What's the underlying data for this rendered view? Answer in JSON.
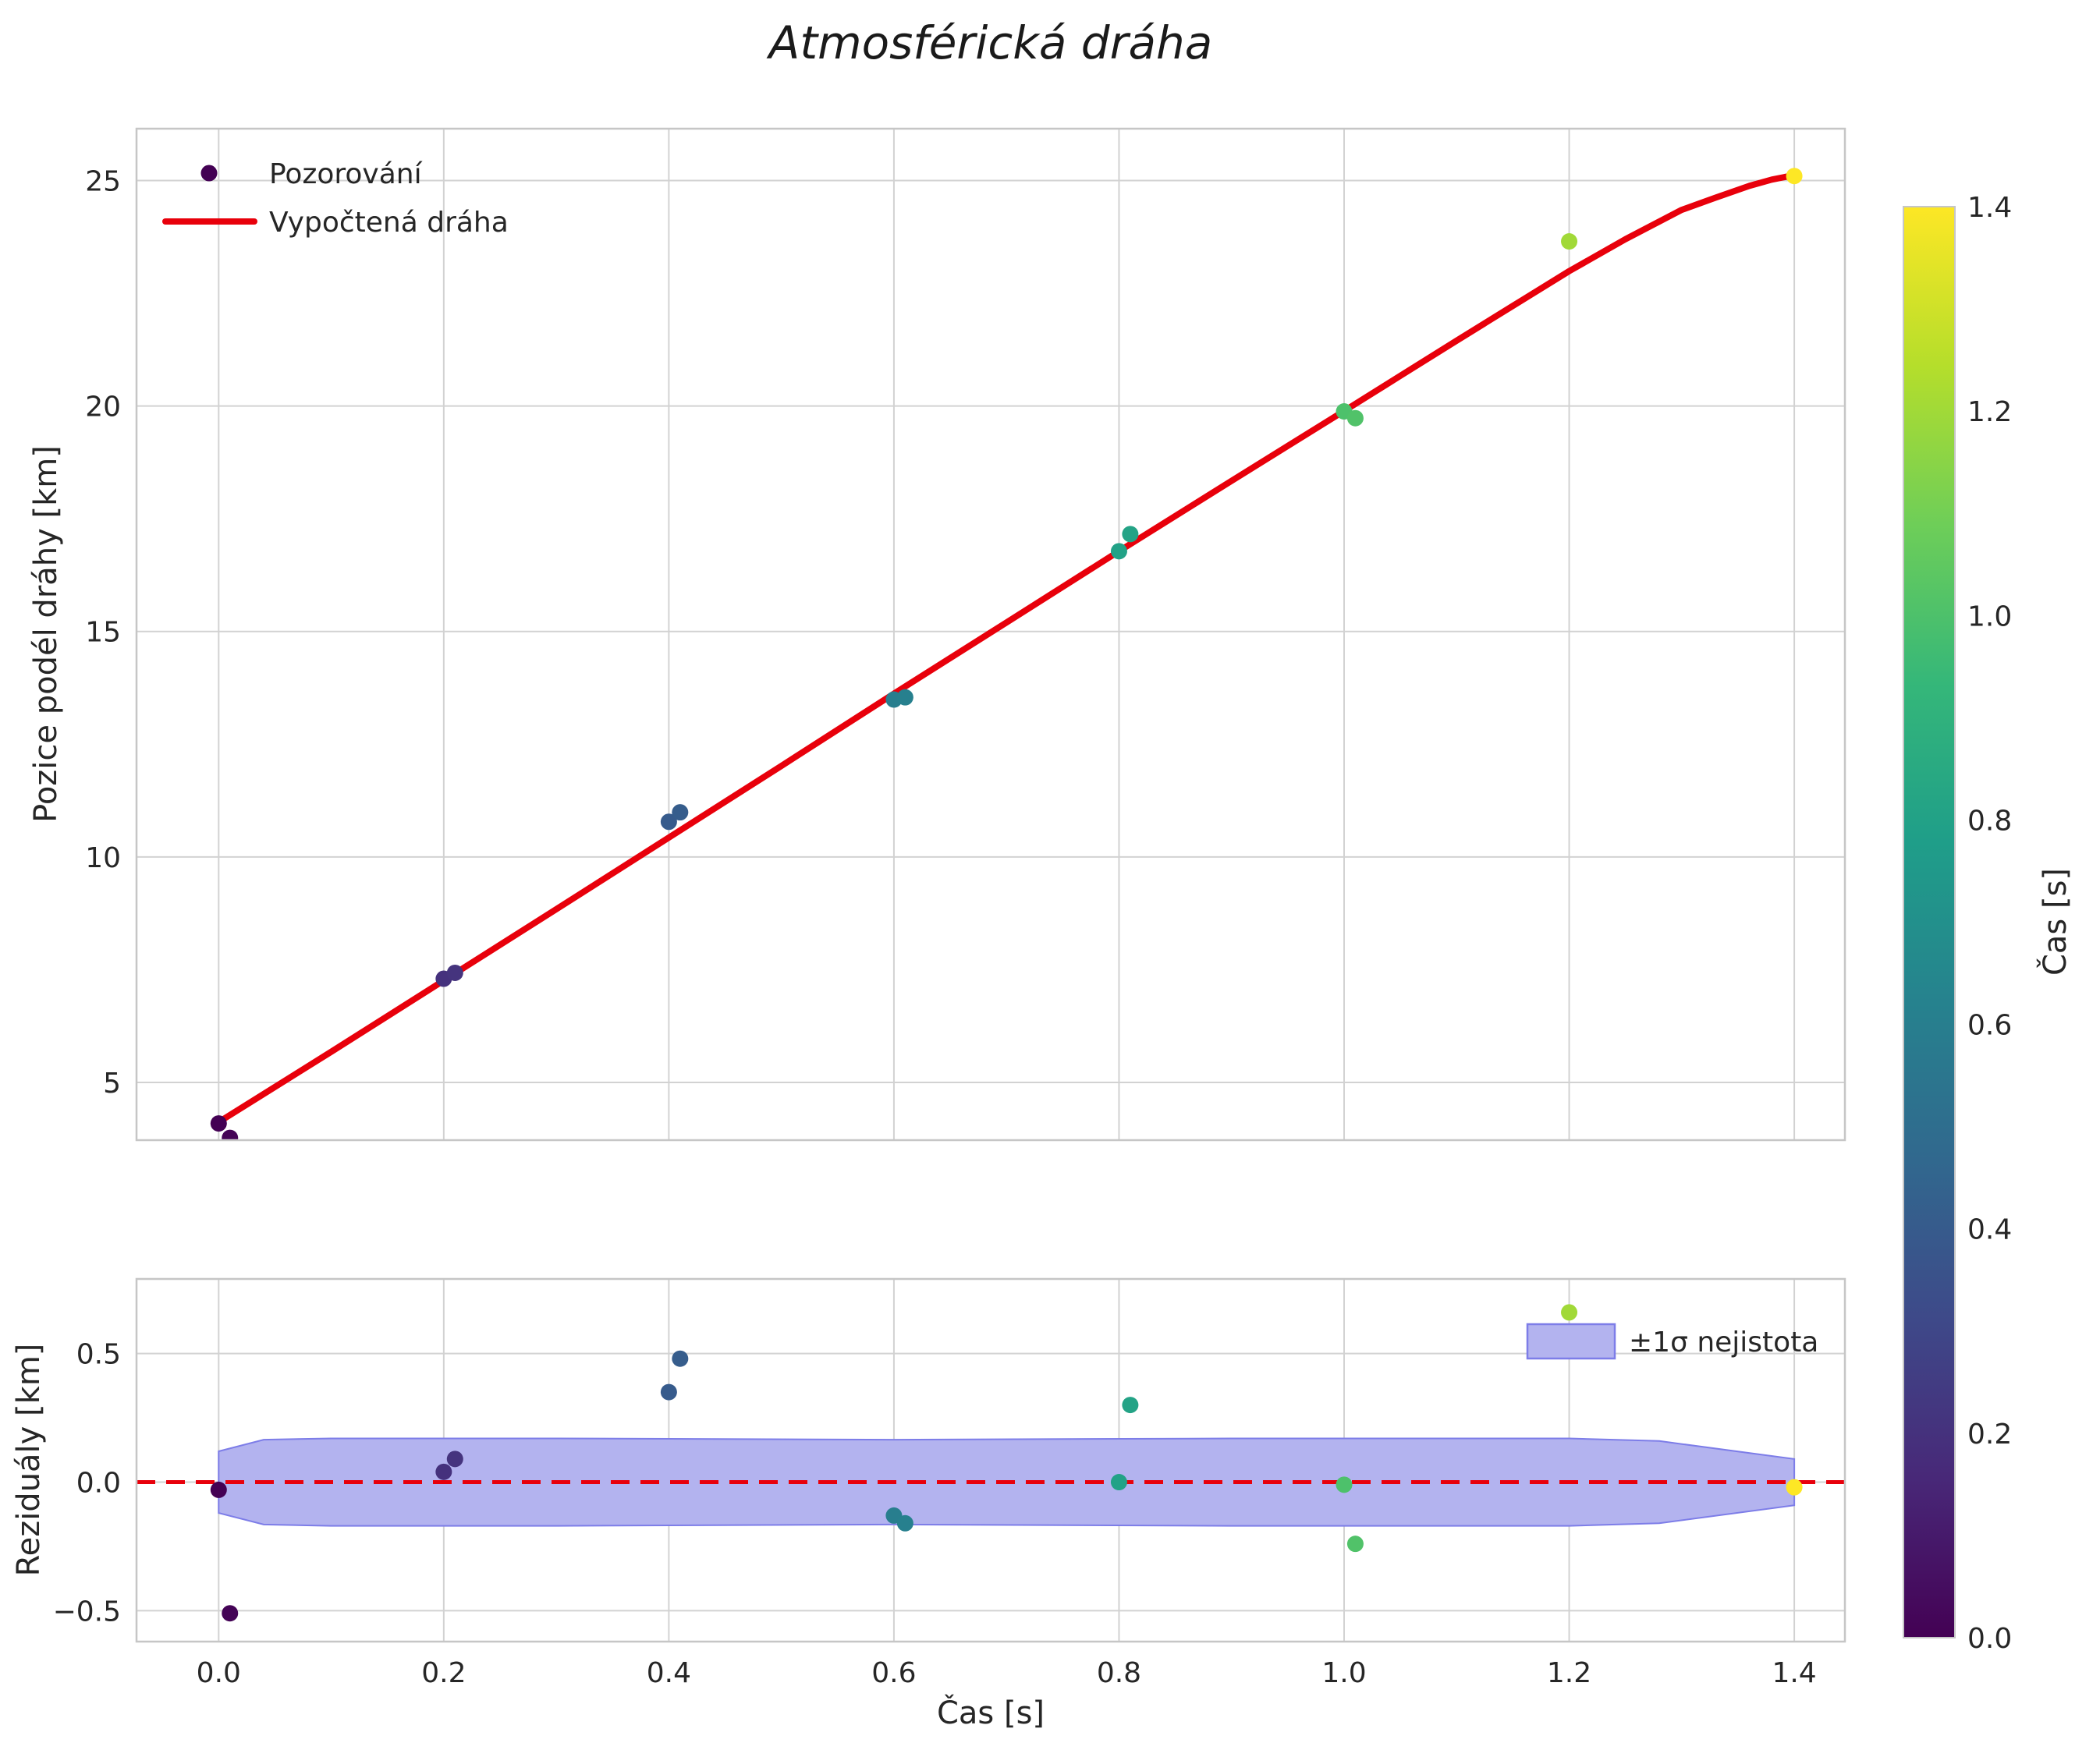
{
  "title": "Atmosférická dráha",
  "colors": {
    "curve": "#e8000b",
    "zero_line": "#e8000b",
    "band_fill": "#b3b3ef",
    "band_edge": "#7d7de8",
    "legend_marker": "#440154",
    "grid": "#d2d2d2",
    "spine": "#c6c6c6",
    "text": "#262626",
    "viridis": [
      "#440154",
      "#482878",
      "#3e4989",
      "#31688e",
      "#26828e",
      "#1f9e89",
      "#35b779",
      "#6ece58",
      "#b5de2b",
      "#fde725"
    ]
  },
  "chart_data": [
    {
      "type": "scatter",
      "title": "Atmosférická dráha",
      "ylabel": "Pozice podél dráhy [km]",
      "xlim": [
        -0.073,
        1.445
      ],
      "ylim": [
        3.72,
        26.15
      ],
      "yticks": [
        5,
        10,
        15,
        20,
        25
      ],
      "ytick_labels": [
        "5",
        "10",
        "15",
        "20",
        "25"
      ],
      "xticks": [
        0,
        0.2,
        0.4,
        0.6,
        0.8,
        1.0,
        1.2,
        1.4
      ],
      "grid": true,
      "legend_position": "upper-left",
      "legend": [
        {
          "label": "Pozorování",
          "type": "marker"
        },
        {
          "label": "Vypočtená dráha",
          "type": "line"
        }
      ],
      "series": [
        {
          "name": "Pozorování",
          "type": "scatter",
          "color_by": "Čas [s]",
          "x": [
            0.0,
            0.01,
            0.2,
            0.21,
            0.4,
            0.41,
            0.6,
            0.61,
            0.8,
            0.81,
            1.0,
            1.01,
            1.2,
            1.4
          ],
          "y": [
            4.09,
            3.77,
            7.3,
            7.43,
            10.78,
            10.99,
            13.49,
            13.54,
            16.78,
            17.16,
            19.88,
            19.73,
            23.65,
            25.1
          ]
        },
        {
          "name": "Vypočtená dráha",
          "type": "line",
          "x": [
            0,
            0.1,
            0.2,
            0.3,
            0.4,
            0.5,
            0.6,
            0.7,
            0.8,
            0.9,
            1.0,
            1.05,
            1.1,
            1.15,
            1.2,
            1.25,
            1.3,
            1.33,
            1.36,
            1.38,
            1.4
          ],
          "y": [
            4.12,
            5.68,
            7.26,
            8.84,
            10.43,
            12.02,
            13.62,
            15.2,
            16.78,
            18.34,
            19.89,
            20.67,
            21.45,
            22.22,
            22.99,
            23.7,
            24.35,
            24.62,
            24.88,
            25.02,
            25.12
          ]
        }
      ]
    },
    {
      "type": "scatter",
      "ylabel": "Reziduály [km]",
      "xlabel": "Čas [s]",
      "xlim": [
        -0.073,
        1.445
      ],
      "ylim": [
        -0.62,
        0.79
      ],
      "yticks": [
        -0.5,
        0.0,
        0.5
      ],
      "ytick_labels": [
        "−0.5",
        "0.0",
        "0.5"
      ],
      "xticks": [
        0,
        0.2,
        0.4,
        0.6,
        0.8,
        1.0,
        1.2,
        1.4
      ],
      "xtick_labels": [
        "0.0",
        "0.2",
        "0.4",
        "0.6",
        "0.8",
        "1.0",
        "1.2",
        "1.4"
      ],
      "grid": true,
      "legend_position": "upper-right",
      "legend": [
        {
          "label": "±1σ nejistota",
          "type": "patch"
        }
      ],
      "zero_line": 0.0,
      "residuals": {
        "x": [
          0.0,
          0.01,
          0.2,
          0.21,
          0.4,
          0.41,
          0.6,
          0.61,
          0.8,
          0.81,
          1.0,
          1.01,
          1.2,
          1.4
        ],
        "y": [
          -0.03,
          -0.51,
          0.04,
          0.09,
          0.35,
          0.48,
          -0.13,
          -0.16,
          0.0,
          0.3,
          -0.01,
          -0.24,
          0.66,
          -0.02
        ]
      },
      "band": {
        "x": [
          0.0,
          0.04,
          0.1,
          0.3,
          0.6,
          0.9,
          1.2,
          1.28,
          1.4
        ],
        "upper": [
          0.12,
          0.165,
          0.17,
          0.17,
          0.165,
          0.17,
          0.17,
          0.16,
          0.09
        ],
        "lower": [
          -0.12,
          -0.165,
          -0.17,
          -0.17,
          -0.165,
          -0.17,
          -0.17,
          -0.16,
          -0.09
        ]
      }
    }
  ],
  "colorbar": {
    "label": "Čas [s]",
    "min": 0.0,
    "max": 1.4,
    "ticks": [
      0,
      0.2,
      0.4,
      0.6,
      0.8,
      1.0,
      1.2,
      1.4
    ],
    "tick_labels": [
      "0.0",
      "0.2",
      "0.4",
      "0.6",
      "0.8",
      "1.0",
      "1.2",
      "1.4"
    ]
  }
}
